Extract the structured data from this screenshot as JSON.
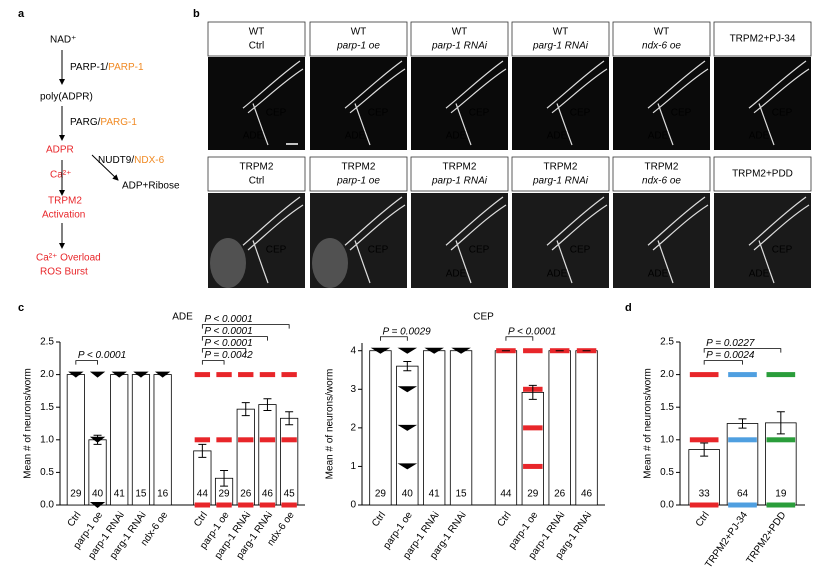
{
  "panel_letters": {
    "a": "a",
    "b": "b",
    "c": "c",
    "d": "d"
  },
  "pathway": {
    "nad": "NAD⁺",
    "parp_a": "PARP-1/",
    "parp_b": "PARP-1",
    "poly": "poly(ADPR)",
    "parg_a": "PARG/",
    "parg_b": "PARG-1",
    "adpr": "ADPR",
    "nudt_a": "NUDT9/",
    "nudt_b": "NDX-6",
    "ribose": "ADP+Ribose",
    "ca": "Ca²⁺",
    "trpm2": "TRPM2",
    "activation": "Activation",
    "overload": "Ca²⁺ Overload",
    "ros": "ROS Burst"
  },
  "images": [
    {
      "lines": [
        "WT",
        "Ctrl"
      ],
      "labels": [
        "CEP",
        "ADE"
      ]
    },
    {
      "lines": [
        "WT",
        "parp-1 oe"
      ],
      "labels": [
        "CEP",
        "ADE"
      ]
    },
    {
      "lines": [
        "WT",
        "parp-1 RNAi"
      ],
      "labels": [
        "CEP",
        "ADE"
      ]
    },
    {
      "lines": [
        "WT",
        "parg-1 RNAi"
      ],
      "labels": [
        "CEP",
        "ADE"
      ]
    },
    {
      "lines": [
        "WT",
        "ndx-6 oe"
      ],
      "labels": [
        "CEP",
        "ADE"
      ]
    },
    {
      "lines": [
        "TRPM2+PJ-34"
      ],
      "labels": [
        "CEP",
        "ADE"
      ]
    },
    {
      "lines": [
        "TRPM2",
        "Ctrl"
      ],
      "labels": [
        "CEP"
      ]
    },
    {
      "lines": [
        "TRPM2",
        "parp-1 oe"
      ],
      "labels": [
        "CEP"
      ]
    },
    {
      "lines": [
        "TRPM2",
        "parp-1 RNAi"
      ],
      "labels": [
        "CEP",
        "ADE"
      ]
    },
    {
      "lines": [
        "TRPM2",
        "parg-1 RNAi"
      ],
      "labels": [
        "CEP",
        "ADE"
      ]
    },
    {
      "lines": [
        "TRPM2",
        "ndx-6 oe"
      ],
      "labels": [
        "ADE"
      ]
    },
    {
      "lines": [
        "TRPM2+PDD"
      ],
      "labels": [
        "CEP",
        "ADE"
      ]
    }
  ],
  "chart_data": [
    {
      "type": "bar",
      "title": "ADE",
      "ylabel": "Mean # of neurons/worm",
      "categories": [
        "Ctrl",
        "parp-1 oe",
        "parp-1 RNAi",
        "parg-1 RNAi",
        "ndx-6 oe",
        "Ctrl",
        "parp-1 oe",
        "parp-1 RNAi",
        "parg-1 RNAi",
        "ndx-6 oe"
      ],
      "values": [
        2,
        1.0,
        2,
        2,
        2,
        0.83,
        0.41,
        1.47,
        1.54,
        1.33
      ],
      "errors": [
        0,
        0.07,
        0,
        0,
        0,
        0.1,
        0.12,
        0.1,
        0.09,
        0.1
      ],
      "n_labels": [
        "29",
        "40",
        "41",
        "15",
        "16",
        "44",
        "29",
        "26",
        "46",
        "45"
      ],
      "colors": [
        "#000000",
        "#000000",
        "#000000",
        "#000000",
        "#000000",
        "#e8262a",
        "#e8262a",
        "#e8262a",
        "#e8262a",
        "#e8262a"
      ],
      "point_levels": [
        [
          2
        ],
        [
          0,
          1,
          2
        ],
        [
          2
        ],
        [
          2
        ],
        [
          2
        ],
        [
          0,
          1,
          2
        ],
        [
          0,
          1,
          2
        ],
        [
          0,
          1,
          2
        ],
        [
          0,
          1,
          2
        ],
        [
          0,
          1,
          2
        ]
      ],
      "ylim": [
        0,
        2.5
      ],
      "yticks": [
        {
          "value": 0,
          "label": "0.0"
        },
        0.5,
        {
          "value": 1,
          "label": "1.0"
        },
        1.5,
        {
          "value": 2,
          "label": "2.0"
        },
        2.5
      ],
      "annotations": [
        {
          "text": "P < 0.0001",
          "from": 0,
          "to": 1
        },
        {
          "text": "P = 0.0042",
          "from": 5,
          "to": 6
        },
        {
          "text": "P < 0.0001",
          "from": 5,
          "to": 7
        },
        {
          "text": "P < 0.0001",
          "from": 5,
          "to": 8
        },
        {
          "text": "P < 0.0001",
          "from": 5,
          "to": 9
        }
      ]
    },
    {
      "type": "bar",
      "title": "CEP",
      "ylabel": "Mean # of neurons/worm",
      "categories": [
        "Ctrl",
        "parp-1 oe",
        "parp-1 RNAi",
        "parg-1 RNAi",
        "Ctrl",
        "parp-1 oe",
        "parp-1 RNAi",
        "parg-1 RNAi"
      ],
      "values": [
        4,
        3.6,
        4,
        4,
        4,
        2.92,
        4,
        4
      ],
      "errors": [
        0,
        0.12,
        0,
        0,
        0,
        0.18,
        0,
        0
      ],
      "n_labels": [
        "29",
        "40",
        "41",
        "15",
        "44",
        "29",
        "26",
        "46"
      ],
      "colors": [
        "#000000",
        "#000000",
        "#000000",
        "#000000",
        "#e8262a",
        "#e8262a",
        "#e8262a",
        "#e8262a"
      ],
      "point_levels": [
        [
          4
        ],
        [
          1,
          2,
          3,
          4
        ],
        [
          4
        ],
        [
          4
        ],
        [
          4
        ],
        [
          1,
          2,
          3,
          4
        ],
        [
          4
        ],
        [
          4
        ]
      ],
      "ylim": [
        0,
        4.2
      ],
      "yticks": [
        0,
        1,
        2,
        3,
        4
      ],
      "annotations": [
        {
          "text": "P = 0.0029",
          "from": 0,
          "to": 1
        },
        {
          "text": "P < 0.0001",
          "from": 4,
          "to": 5
        }
      ]
    },
    {
      "type": "bar",
      "ylabel": "Mean # of neurons/worm",
      "categories": [
        "Ctrl",
        "TRPM2+PJ-34",
        "TRPM2+PDD"
      ],
      "values": [
        0.85,
        1.25,
        1.26
      ],
      "errors": [
        0.1,
        0.07,
        0.17
      ],
      "n_labels": [
        "33",
        "64",
        "19"
      ],
      "colors": [
        "#e8262a",
        "#4f9fe0",
        "#2a9d3a"
      ],
      "point_levels": [
        [
          0,
          1,
          2
        ],
        [
          0,
          1,
          2
        ],
        [
          0,
          1,
          2
        ]
      ],
      "ylim": [
        0,
        2.5
      ],
      "yticks": [
        {
          "value": 0,
          "label": "0.0"
        },
        0.5,
        {
          "value": 1,
          "label": "1.0"
        },
        1.5,
        {
          "value": 2,
          "label": "2.0"
        },
        2.5
      ],
      "annotations": [
        {
          "text": "P = 0.0024",
          "from": 0,
          "to": 1
        },
        {
          "text": "P = 0.0227",
          "from": 0,
          "to": 2
        }
      ]
    }
  ]
}
